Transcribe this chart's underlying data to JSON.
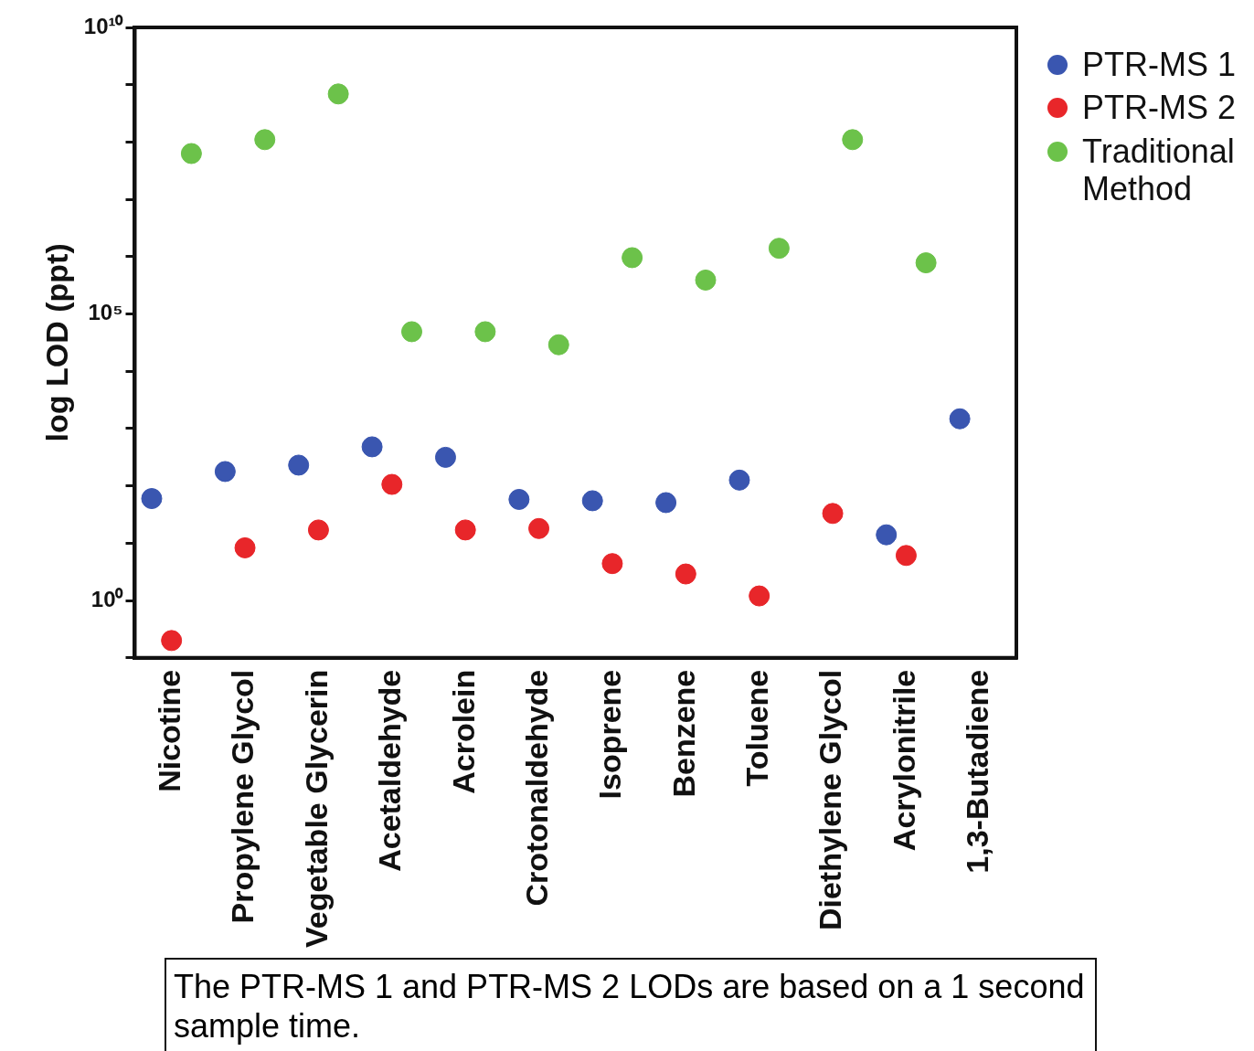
{
  "chart_data": {
    "type": "scatter",
    "ylabel": "log LOD (ppt)",
    "categories": [
      "Nicotine",
      "Propylene Glycol",
      "Vegetable Glycerin",
      "Acetaldehyde",
      "Acrolein",
      "Crotonaldehyde",
      "Isoprene",
      "Benzene",
      "Toluene",
      "Diethylene Glycol",
      "Acrylonitrile",
      "1,3-Butadiene"
    ],
    "series": [
      {
        "name": "PTR-MS 1",
        "color": "#3a56b0",
        "values": [
          60,
          178,
          230,
          480,
          315,
          58,
          55,
          51,
          126,
          null,
          14,
          1480
        ]
      },
      {
        "name": "PTR-MS 2",
        "color": "#e8262a",
        "values": [
          0.2,
          8.3,
          17,
          106,
          17,
          18,
          4.4,
          2.9,
          1.2,
          33,
          6.1,
          null
        ]
      },
      {
        "name": "Traditional Method",
        "color": "#6cc24a",
        "values": [
          63000000,
          110000000,
          690000000,
          49000,
          49000,
          29000,
          960000,
          390000,
          1400000,
          110000000,
          780000,
          null
        ]
      }
    ],
    "log": "y",
    "ylim": [
      0.1,
      10000000000
    ],
    "yticks": [
      {
        "value": 0.1,
        "label": null
      },
      {
        "value": 1,
        "label": "10⁰"
      },
      {
        "value": 10,
        "label": null
      },
      {
        "value": 100,
        "label": null
      },
      {
        "value": 1000,
        "label": null
      },
      {
        "value": 10000,
        "label": null
      },
      {
        "value": 100000,
        "label": "10⁵"
      },
      {
        "value": 1000000,
        "label": null
      },
      {
        "value": 10000000,
        "label": null
      },
      {
        "value": 100000000,
        "label": null
      },
      {
        "value": 1000000000,
        "label": null
      },
      {
        "value": 10000000000,
        "label": "10¹⁰"
      }
    ],
    "grid": false,
    "legend": "top right",
    "marker": "circle",
    "annotations": [
      "The PTR-MS 1 and PTR-MS 2 LODs are based on a 1 second sample time."
    ]
  }
}
